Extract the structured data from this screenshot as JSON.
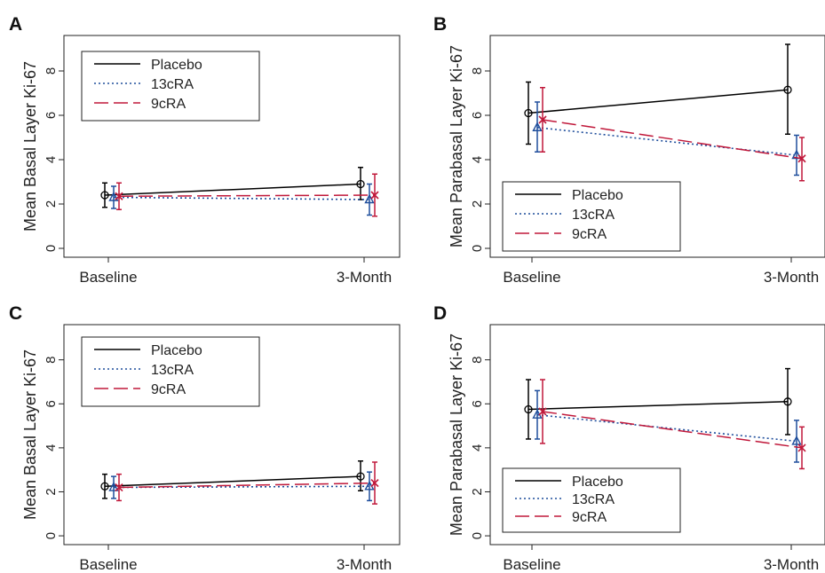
{
  "figure": {
    "panels": [
      {
        "id": "A",
        "label": "A",
        "ylabel": "Mean Basal Layer Ki-67",
        "legend_position": "top-left",
        "xticks": [
          "Baseline",
          "3-Month"
        ],
        "yticks": [
          "0",
          "2",
          "4",
          "6",
          "8"
        ]
      },
      {
        "id": "B",
        "label": "B",
        "ylabel": "Mean Parabasal Layer Ki-67",
        "legend_position": "bottom-left",
        "xticks": [
          "Baseline",
          "3-Month"
        ],
        "yticks": [
          "0",
          "2",
          "4",
          "6",
          "8"
        ]
      },
      {
        "id": "C",
        "label": "C",
        "ylabel": "Mean Basal Layer Ki-67",
        "legend_position": "top-left",
        "xticks": [
          "Baseline",
          "3-Month"
        ],
        "yticks": [
          "0",
          "2",
          "4",
          "6",
          "8"
        ]
      },
      {
        "id": "D",
        "label": "D",
        "ylabel": "Mean Parabasal Layer Ki-67",
        "legend_position": "bottom-left",
        "xticks": [
          "Baseline",
          "3-Month"
        ],
        "yticks": [
          "0",
          "2",
          "4",
          "6",
          "8"
        ]
      }
    ]
  },
  "chart_data": [
    {
      "type": "line",
      "panel": "A",
      "title": "",
      "xlabel": "",
      "ylabel": "Mean Basal Layer Ki-67",
      "categories": [
        "Baseline",
        "3-Month"
      ],
      "ylim": [
        -0.4,
        9.6
      ],
      "yticks": [
        0,
        2,
        4,
        6,
        8
      ],
      "grid": false,
      "legend": "top-left",
      "series": [
        {
          "name": "Placebo",
          "color": "#000000",
          "style": "solid",
          "marker": "circle",
          "values": [
            2.4,
            2.9
          ],
          "lower": [
            1.85,
            2.2
          ],
          "upper": [
            2.95,
            3.65
          ]
        },
        {
          "name": "13cRA",
          "color": "#1f4e9c",
          "style": "dotted",
          "marker": "triangle",
          "values": [
            2.3,
            2.2
          ],
          "lower": [
            1.8,
            1.5
          ],
          "upper": [
            2.8,
            2.9
          ]
        },
        {
          "name": "9cRA",
          "color": "#c0183a",
          "style": "dashed",
          "marker": "x",
          "values": [
            2.35,
            2.4
          ],
          "lower": [
            1.75,
            1.45
          ],
          "upper": [
            2.95,
            3.35
          ]
        }
      ]
    },
    {
      "type": "line",
      "panel": "B",
      "title": "",
      "xlabel": "",
      "ylabel": "Mean Parabasal Layer Ki-67",
      "categories": [
        "Baseline",
        "3-Month"
      ],
      "ylim": [
        -0.4,
        9.6
      ],
      "yticks": [
        0,
        2,
        4,
        6,
        8
      ],
      "grid": false,
      "legend": "bottom-left",
      "series": [
        {
          "name": "Placebo",
          "color": "#000000",
          "style": "solid",
          "marker": "circle",
          "values": [
            6.1,
            7.15
          ],
          "lower": [
            4.7,
            5.15
          ],
          "upper": [
            7.5,
            9.2
          ]
        },
        {
          "name": "13cRA",
          "color": "#1f4e9c",
          "style": "dotted",
          "marker": "triangle",
          "values": [
            5.45,
            4.2
          ],
          "lower": [
            4.35,
            3.3
          ],
          "upper": [
            6.6,
            5.1
          ]
        },
        {
          "name": "9cRA",
          "color": "#c0183a",
          "style": "dashed",
          "marker": "x",
          "values": [
            5.8,
            4.05
          ],
          "lower": [
            4.35,
            3.05
          ],
          "upper": [
            7.25,
            5.0
          ]
        }
      ]
    },
    {
      "type": "line",
      "panel": "C",
      "title": "",
      "xlabel": "",
      "ylabel": "Mean Basal Layer Ki-67",
      "categories": [
        "Baseline",
        "3-Month"
      ],
      "ylim": [
        -0.4,
        9.6
      ],
      "yticks": [
        0,
        2,
        4,
        6,
        8
      ],
      "grid": false,
      "legend": "top-left",
      "series": [
        {
          "name": "Placebo",
          "color": "#000000",
          "style": "solid",
          "marker": "circle",
          "values": [
            2.25,
            2.7
          ],
          "lower": [
            1.7,
            2.05
          ],
          "upper": [
            2.8,
            3.4
          ]
        },
        {
          "name": "13cRA",
          "color": "#1f4e9c",
          "style": "dotted",
          "marker": "triangle",
          "values": [
            2.2,
            2.25
          ],
          "lower": [
            1.7,
            1.6
          ],
          "upper": [
            2.7,
            2.9
          ]
        },
        {
          "name": "9cRA",
          "color": "#c0183a",
          "style": "dashed",
          "marker": "x",
          "values": [
            2.2,
            2.4
          ],
          "lower": [
            1.6,
            1.45
          ],
          "upper": [
            2.8,
            3.35
          ]
        }
      ]
    },
    {
      "type": "line",
      "panel": "D",
      "title": "",
      "xlabel": "",
      "ylabel": "Mean Parabasal Layer Ki-67",
      "categories": [
        "Baseline",
        "3-Month"
      ],
      "ylim": [
        -0.4,
        9.6
      ],
      "yticks": [
        0,
        2,
        4,
        6,
        8
      ],
      "grid": false,
      "legend": "bottom-left",
      "series": [
        {
          "name": "Placebo",
          "color": "#000000",
          "style": "solid",
          "marker": "circle",
          "values": [
            5.75,
            6.1
          ],
          "lower": [
            4.4,
            4.6
          ],
          "upper": [
            7.1,
            7.6
          ]
        },
        {
          "name": "13cRA",
          "color": "#1f4e9c",
          "style": "dotted",
          "marker": "triangle",
          "values": [
            5.5,
            4.3
          ],
          "lower": [
            4.4,
            3.35
          ],
          "upper": [
            6.6,
            5.25
          ]
        },
        {
          "name": "9cRA",
          "color": "#c0183a",
          "style": "dashed",
          "marker": "x",
          "values": [
            5.65,
            4.0
          ],
          "lower": [
            4.2,
            3.05
          ],
          "upper": [
            7.1,
            4.95
          ]
        }
      ]
    }
  ]
}
